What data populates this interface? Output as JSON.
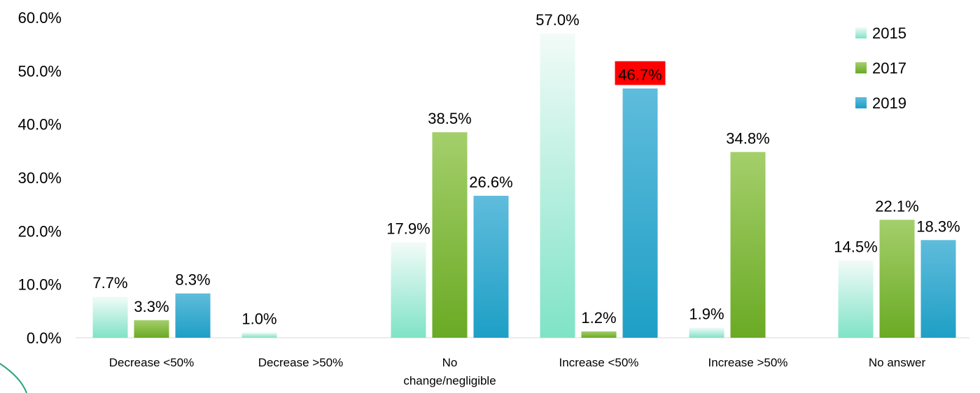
{
  "chart_data": {
    "type": "bar",
    "title": "",
    "xlabel": "",
    "ylabel": "",
    "ylim": [
      0,
      60
    ],
    "yticks": [
      "0.0%",
      "10.0%",
      "20.0%",
      "30.0%",
      "40.0%",
      "50.0%",
      "60.0%"
    ],
    "categories": [
      "Decrease <50%",
      "Decrease >50%",
      "No change/negligible",
      "Increase <50%",
      "Increase >50%",
      "No answer"
    ],
    "series": [
      {
        "name": "2015",
        "values": [
          7.7,
          1.0,
          17.9,
          57.0,
          1.9,
          14.5
        ],
        "labels": [
          "7.7%",
          "1.0%",
          "17.9%",
          "57.0%",
          "1.9%",
          "14.5%"
        ],
        "color_top": "#f2fbf8",
        "color_bottom": "#7fe3c6"
      },
      {
        "name": "2017",
        "values": [
          3.3,
          null,
          38.5,
          1.2,
          34.8,
          22.1
        ],
        "labels": [
          "3.3%",
          null,
          "38.5%",
          "1.2%",
          "34.8%",
          "22.1%"
        ],
        "color_top": "#a4cf6b",
        "color_bottom": "#6aaa24"
      },
      {
        "name": "2019",
        "values": [
          8.3,
          null,
          26.6,
          46.7,
          null,
          18.3
        ],
        "labels": [
          "8.3%",
          null,
          "26.6%",
          "46.7%",
          null,
          "18.3%"
        ],
        "color_top": "#5fbcdc",
        "color_bottom": "#1e9fc5"
      }
    ],
    "highlight": {
      "series": 2,
      "index": 3,
      "color": "#ff0000"
    },
    "legend_position": "top-right",
    "grid": false
  }
}
